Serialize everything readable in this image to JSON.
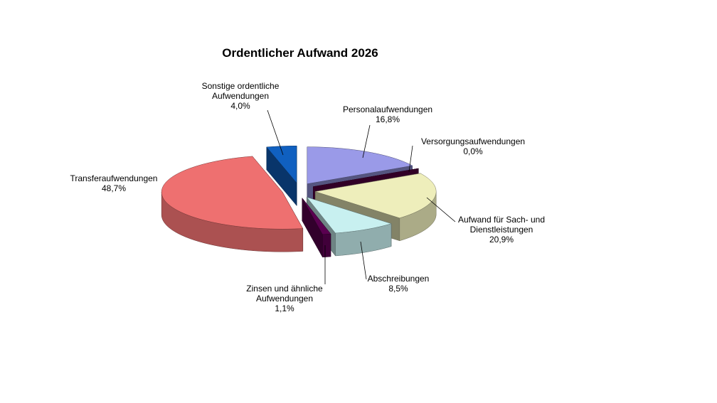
{
  "chart_data": {
    "type": "pie3d",
    "title": "Ordentlicher Aufwand 2026",
    "categories": [
      "Personalaufwendungen",
      "Versorgungsaufwendungen",
      "Aufwand für Sach- und\nDienstleistungen",
      "Abschreibungen",
      "Zinsen und ähnliche\nAufwendungen",
      "Transferaufwendungen",
      "Sonstige ordentliche\nAufwendungen"
    ],
    "values": [
      16.8,
      0.0,
      20.9,
      8.5,
      1.1,
      48.7,
      4.0
    ],
    "value_labels": [
      "16,8%",
      "0,0%",
      "20,9%",
      "8,5%",
      "1,1%",
      "48,7%",
      "4,0%"
    ],
    "colors": [
      "#9a9ae8",
      "#5a0045",
      "#eeeebb",
      "#c8f0f0",
      "#5a0050",
      "#ee7070",
      "#1060c0"
    ]
  }
}
